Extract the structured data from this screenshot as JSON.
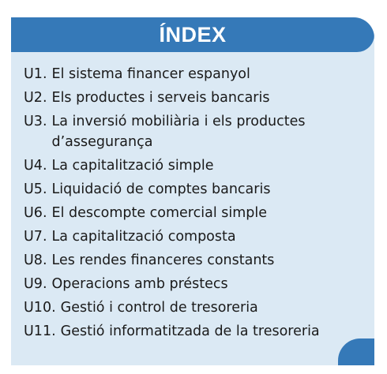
{
  "title": "ÍNDEX",
  "units": [
    {
      "code": "U1.",
      "title": "El sistema financer espanyol"
    },
    {
      "code": "U2.",
      "title": "Els productes i serveis bancaris"
    },
    {
      "code": "U3.",
      "title": "La inversió mobiliària i els productes",
      "title_line2": "d’assegurança"
    },
    {
      "code": "U4.",
      "title": "La capitalització simple"
    },
    {
      "code": "U5.",
      "title": "Liquidació de comptes bancaris"
    },
    {
      "code": "U6.",
      "title": "El descompte comercial simple"
    },
    {
      "code": "U7.",
      "title": "La capitalització composta"
    },
    {
      "code": "U8.",
      "title": "Les rendes financeres constants"
    },
    {
      "code": "U9.",
      "title": "Operacions amb préstecs"
    },
    {
      "code": "U10.",
      "title": "Gestió i control de tresoreria"
    },
    {
      "code": "U11.",
      "title": "Gestió informatitzada de la tresoreria"
    }
  ],
  "colors": {
    "header": "#3579b8",
    "panel": "#dbe9f4",
    "text": "#1a1a1a"
  }
}
